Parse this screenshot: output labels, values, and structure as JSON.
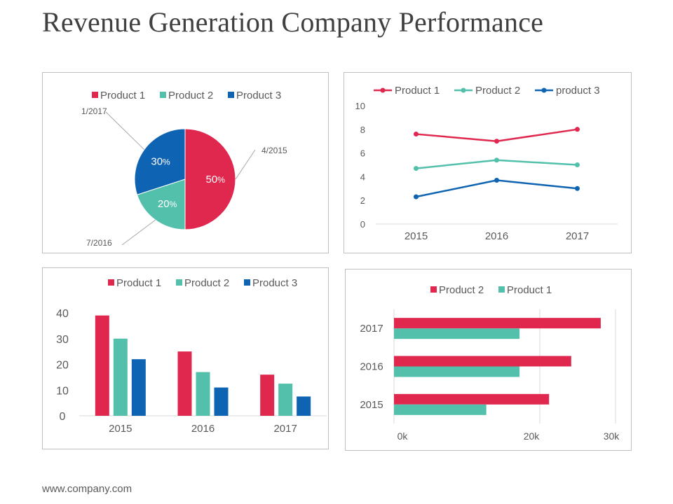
{
  "page": {
    "title": "Revenue Generation Company Performance",
    "footer": "www.company.com"
  },
  "colors": {
    "product1": "#E0284F",
    "product2": "#52C0AB",
    "product3": "#0E63B3",
    "axis": "#d9d9d9",
    "text": "#595959"
  },
  "chart_data": [
    {
      "type": "pie",
      "legend": [
        "Product 1",
        "Product 2",
        "Product 3"
      ],
      "slices": [
        {
          "name": "Product 1",
          "value": 50,
          "label": "50",
          "callout": "4/2015"
        },
        {
          "name": "Product 2",
          "value": 20,
          "label": "20",
          "callout": "7/2016"
        },
        {
          "name": "Product 3",
          "value": 30,
          "label": "30",
          "callout": "1/2017"
        }
      ],
      "percent_sign": "%"
    },
    {
      "type": "line",
      "categories": [
        "2015",
        "2016",
        "2017"
      ],
      "ylim": [
        0,
        10
      ],
      "yticks": [
        "0",
        "2",
        "4",
        "6",
        "8",
        "10"
      ],
      "series": [
        {
          "name": "Product 1",
          "values": [
            7.6,
            7.0,
            8.0
          ]
        },
        {
          "name": "Product 2",
          "values": [
            4.7,
            5.4,
            5.0
          ]
        },
        {
          "name": "product 3",
          "values": [
            2.3,
            3.7,
            3.0
          ]
        }
      ]
    },
    {
      "type": "bar",
      "categories": [
        "2015",
        "2016",
        "2017"
      ],
      "ylim": [
        0,
        40
      ],
      "yticks": [
        "0",
        "10",
        "20",
        "30",
        "40"
      ],
      "series": [
        {
          "name": "Product 1",
          "values": [
            39,
            25,
            16
          ]
        },
        {
          "name": "Product 2",
          "values": [
            30,
            17,
            12.5
          ]
        },
        {
          "name": "Product 3",
          "values": [
            22,
            11,
            7.5
          ]
        }
      ]
    },
    {
      "type": "bar-horizontal",
      "categories": [
        "2017",
        "2016",
        "2015"
      ],
      "xlim": [
        0,
        30000
      ],
      "xticks": [
        "0k",
        "20k",
        "30k"
      ],
      "series": [
        {
          "name": "Product 2",
          "values": [
            28000,
            24000,
            21000
          ]
        },
        {
          "name": "Product 1",
          "values": [
            17000,
            17000,
            12500
          ]
        }
      ]
    }
  ]
}
